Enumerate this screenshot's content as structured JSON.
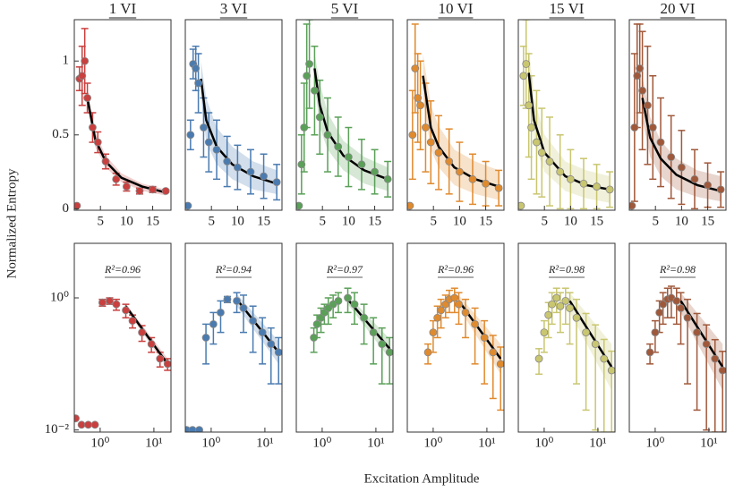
{
  "figure": {
    "ylabel": "Normalized Entropy",
    "xlabel": "Excitation Amplitude"
  },
  "chart_data": [
    {
      "type": "scatter",
      "title": "1 VI",
      "xscale": "linear",
      "yscale": "linear",
      "xlim": [
        0,
        18.5
      ],
      "ylim": [
        -0.01,
        1.28
      ],
      "xticks": [
        5,
        10,
        15
      ],
      "yticks": [
        0,
        0.5,
        1
      ],
      "series": [
        {
          "color": "#c9403f",
          "x": [
            0.5,
            1,
            1.5,
            2,
            2.5,
            3.5,
            4.5,
            6,
            8,
            10,
            12.5,
            15,
            17.5
          ],
          "values": [
            0.02,
            0.88,
            0.9,
            1.0,
            0.75,
            0.55,
            0.45,
            0.32,
            0.2,
            0.15,
            0.12,
            0.13,
            0.12
          ],
          "errors": [
            0,
            0.08,
            0.2,
            0.22,
            0.1,
            0.1,
            0.07,
            0.05,
            0.04,
            0.03,
            0.02,
            0.02,
            0.01
          ]
        }
      ],
      "fit": {
        "x": [
          2.5,
          4,
          6,
          9,
          13,
          17.5
        ],
        "values": [
          0.75,
          0.47,
          0.32,
          0.21,
          0.15,
          0.11
        ],
        "lower": [
          0.7,
          0.42,
          0.28,
          0.18,
          0.12,
          0.09
        ],
        "upper": [
          0.8,
          0.52,
          0.36,
          0.24,
          0.17,
          0.13
        ]
      }
    },
    {
      "type": "scatter",
      "title": "3 VI",
      "xscale": "linear",
      "yscale": "linear",
      "xlim": [
        0,
        18.5
      ],
      "ylim": [
        -0.01,
        1.28
      ],
      "xticks": [
        5,
        10,
        15
      ],
      "series": [
        {
          "color": "#4a7bb0",
          "x": [
            0.5,
            1,
            1.5,
            2,
            2.5,
            3.5,
            4.5,
            6,
            8,
            10,
            12.5,
            15,
            17.5
          ],
          "values": [
            0.02,
            0.5,
            0.98,
            0.95,
            0.85,
            0.55,
            0.45,
            0.4,
            0.32,
            0.28,
            0.25,
            0.22,
            0.18
          ],
          "errors": [
            0,
            0.1,
            0.1,
            0.15,
            0.2,
            0.2,
            0.2,
            0.2,
            0.17,
            0.15,
            0.15,
            0.15,
            0.12
          ]
        }
      ],
      "fit": {
        "x": [
          3,
          4,
          6,
          9,
          13,
          17.5
        ],
        "values": [
          0.88,
          0.6,
          0.42,
          0.3,
          0.22,
          0.17
        ],
        "lower": [
          0.75,
          0.45,
          0.3,
          0.2,
          0.13,
          0.1
        ],
        "upper": [
          1.0,
          0.75,
          0.55,
          0.42,
          0.32,
          0.26
        ]
      }
    },
    {
      "type": "scatter",
      "title": "5 VI",
      "xscale": "linear",
      "yscale": "linear",
      "xlim": [
        0,
        18.5
      ],
      "ylim": [
        -0.01,
        1.28
      ],
      "xticks": [
        5,
        10,
        15
      ],
      "series": [
        {
          "color": "#5aa058",
          "x": [
            0.5,
            1,
            1.5,
            2,
            2.5,
            3.5,
            4.5,
            6,
            8,
            10,
            12.5,
            15,
            17.5
          ],
          "values": [
            0.02,
            0.3,
            0.55,
            0.9,
            0.98,
            0.8,
            0.62,
            0.5,
            0.42,
            0.35,
            0.3,
            0.25,
            0.2
          ],
          "errors": [
            0,
            0.2,
            0.3,
            0.35,
            0.3,
            0.3,
            0.25,
            0.25,
            0.2,
            0.2,
            0.17,
            0.15,
            0.12
          ]
        }
      ],
      "fit": {
        "x": [
          3.5,
          4.5,
          6,
          9,
          13,
          17.5
        ],
        "values": [
          0.95,
          0.7,
          0.52,
          0.36,
          0.26,
          0.2
        ],
        "lower": [
          0.85,
          0.55,
          0.4,
          0.26,
          0.17,
          0.12
        ],
        "upper": [
          1.05,
          0.85,
          0.65,
          0.46,
          0.35,
          0.28
        ]
      }
    },
    {
      "type": "scatter",
      "title": "10 VI",
      "xscale": "linear",
      "yscale": "linear",
      "xlim": [
        0,
        18.5
      ],
      "ylim": [
        -0.01,
        1.28
      ],
      "xticks": [
        5,
        10,
        15
      ],
      "series": [
        {
          "color": "#e08a2e",
          "x": [
            0.5,
            1,
            1.5,
            2,
            2.5,
            3.5,
            4.5,
            6,
            8,
            10,
            12.5,
            15,
            17.5
          ],
          "values": [
            0.02,
            0.5,
            0.95,
            0.75,
            0.7,
            0.55,
            0.45,
            0.38,
            0.32,
            0.25,
            0.2,
            0.17,
            0.14
          ],
          "errors": [
            0,
            0.3,
            0.3,
            0.3,
            0.3,
            0.3,
            0.28,
            0.25,
            0.22,
            0.2,
            0.17,
            0.15,
            0.12
          ]
        }
      ],
      "fit": {
        "x": [
          3,
          4.5,
          6,
          9,
          13,
          17.5
        ],
        "values": [
          0.9,
          0.55,
          0.42,
          0.28,
          0.2,
          0.15
        ],
        "lower": [
          0.75,
          0.4,
          0.28,
          0.16,
          0.1,
          0.06
        ],
        "upper": [
          1.05,
          0.7,
          0.56,
          0.4,
          0.32,
          0.26
        ]
      }
    },
    {
      "type": "scatter",
      "title": "15 VI",
      "xscale": "linear",
      "yscale": "linear",
      "xlim": [
        0,
        18.5
      ],
      "ylim": [
        -0.01,
        1.28
      ],
      "xticks": [
        5,
        10,
        15
      ],
      "series": [
        {
          "color": "#c9c670",
          "x": [
            0.5,
            1,
            1.5,
            2,
            2.5,
            3.5,
            4.5,
            6,
            8,
            10,
            12.5,
            15,
            17.5
          ],
          "values": [
            0.02,
            0.9,
            0.98,
            0.7,
            0.55,
            0.45,
            0.38,
            0.32,
            0.25,
            0.2,
            0.17,
            0.15,
            0.13
          ],
          "errors": [
            0,
            0.2,
            0.3,
            0.35,
            0.35,
            0.35,
            0.3,
            0.3,
            0.25,
            0.2,
            0.17,
            0.15,
            0.12
          ]
        }
      ],
      "fit": {
        "x": [
          2,
          3,
          5,
          9,
          13,
          17.5
        ],
        "values": [
          0.92,
          0.6,
          0.38,
          0.22,
          0.16,
          0.13
        ],
        "lower": [
          0.75,
          0.45,
          0.25,
          0.12,
          0.07,
          0.04
        ],
        "upper": [
          1.1,
          0.75,
          0.5,
          0.32,
          0.26,
          0.22
        ]
      }
    },
    {
      "type": "scatter",
      "title": "20 VI",
      "xscale": "linear",
      "yscale": "linear",
      "xlim": [
        0,
        18.5
      ],
      "ylim": [
        -0.01,
        1.28
      ],
      "xticks": [
        5,
        10,
        15
      ],
      "series": [
        {
          "color": "#a0583a",
          "x": [
            0.5,
            1,
            1.5,
            2,
            2.5,
            3.5,
            4.5,
            6,
            8,
            10,
            12.5,
            15,
            17.5
          ],
          "values": [
            0.02,
            0.55,
            0.9,
            0.95,
            0.8,
            0.7,
            0.55,
            0.45,
            0.35,
            0.28,
            0.2,
            0.16,
            0.13
          ],
          "errors": [
            0,
            0.5,
            0.35,
            0.3,
            0.4,
            0.4,
            0.35,
            0.3,
            0.28,
            0.25,
            0.2,
            0.15,
            0.12
          ]
        }
      ],
      "fit": {
        "x": [
          2.5,
          4,
          6,
          9,
          13,
          17.5
        ],
        "values": [
          0.75,
          0.48,
          0.34,
          0.23,
          0.16,
          0.12
        ],
        "lower": [
          0.6,
          0.35,
          0.22,
          0.13,
          0.08,
          0.05
        ],
        "upper": [
          0.9,
          0.62,
          0.46,
          0.34,
          0.26,
          0.22
        ]
      }
    },
    {
      "type": "scatter",
      "annotation": "R²=0.96",
      "xscale": "log",
      "yscale": "log",
      "xlim": [
        0.33,
        20.8
      ],
      "ylim": [
        0.0093,
        6.7
      ],
      "xticks": [
        {
          "value": 1,
          "label": "10⁰"
        },
        {
          "value": 10,
          "label": "10¹"
        }
      ],
      "yticks": [
        {
          "value": 0.01,
          "label": "10⁻²"
        },
        {
          "value": 1,
          "label": "10⁰"
        }
      ],
      "series": [
        {
          "color": "#c9403f",
          "x": [
            0.35,
            0.45,
            0.6,
            0.8,
            1.1,
            1.5,
            2,
            3,
            4,
            6,
            9,
            13,
            18
          ],
          "values": [
            0.015,
            0.012,
            0.012,
            0.012,
            0.85,
            0.9,
            0.8,
            0.65,
            0.45,
            0.3,
            0.2,
            0.12,
            0.1
          ],
          "errors": [
            0,
            0,
            0,
            0,
            0.1,
            0.1,
            0.15,
            0.15,
            0.1,
            0.08,
            0.05,
            0.03,
            0.02
          ]
        }
      ],
      "fit": {
        "x": [
          3,
          18
        ],
        "values": [
          0.75,
          0.1
        ],
        "lower": [
          0.68,
          0.085
        ],
        "upper": [
          0.82,
          0.12
        ]
      }
    },
    {
      "type": "scatter",
      "annotation": "R²=0.94",
      "xscale": "log",
      "yscale": "log",
      "xlim": [
        0.33,
        20.8
      ],
      "ylim": [
        0.0093,
        6.7
      ],
      "xticks": [
        {
          "value": 1,
          "label": "10⁰"
        },
        {
          "value": 10,
          "label": "10¹"
        }
      ],
      "series": [
        {
          "color": "#4a7bb0",
          "x": [
            0.35,
            0.45,
            0.6,
            0.8,
            1.1,
            1.5,
            2,
            3,
            4,
            6,
            9,
            13,
            18
          ],
          "values": [
            0.01,
            0.01,
            0.01,
            0.25,
            0.4,
            0.6,
            0.95,
            0.9,
            0.7,
            0.45,
            0.3,
            0.2,
            0.15
          ],
          "errors": [
            0,
            0,
            0,
            0.15,
            0.2,
            0.3,
            0.1,
            0.3,
            0.4,
            0.3,
            0.2,
            0.15,
            0.1
          ]
        }
      ],
      "fit": {
        "x": [
          3,
          18
        ],
        "values": [
          0.95,
          0.15
        ],
        "lower": [
          0.75,
          0.1
        ],
        "upper": [
          1.15,
          0.22
        ]
      }
    },
    {
      "type": "scatter",
      "annotation": "R²=0.97",
      "xscale": "log",
      "yscale": "log",
      "xlim": [
        0.33,
        20.8
      ],
      "ylim": [
        0.0093,
        6.7
      ],
      "xticks": [
        {
          "value": 1,
          "label": "10⁰"
        },
        {
          "value": 10,
          "label": "10¹"
        }
      ],
      "series": [
        {
          "color": "#5aa058",
          "x": [
            0.7,
            0.8,
            0.95,
            1.1,
            1.3,
            1.6,
            2,
            3,
            4,
            6,
            9,
            13,
            18
          ],
          "values": [
            0.25,
            0.4,
            0.5,
            0.6,
            0.7,
            0.8,
            0.9,
            1.0,
            0.8,
            0.5,
            0.3,
            0.2,
            0.15
          ],
          "errors": [
            0.1,
            0.15,
            0.2,
            0.2,
            0.3,
            0.3,
            0.3,
            0.4,
            0.4,
            0.3,
            0.2,
            0.15,
            0.1
          ]
        }
      ],
      "fit": {
        "x": [
          3,
          18
        ],
        "values": [
          0.95,
          0.17
        ],
        "lower": [
          0.8,
          0.12
        ],
        "upper": [
          1.1,
          0.24
        ]
      }
    },
    {
      "type": "scatter",
      "annotation": "R²=0.96",
      "xscale": "log",
      "yscale": "log",
      "xlim": [
        0.33,
        20.8
      ],
      "ylim": [
        0.0093,
        6.7
      ],
      "xticks": [
        {
          "value": 1,
          "label": "10⁰"
        },
        {
          "value": 10,
          "label": "10¹"
        }
      ],
      "series": [
        {
          "color": "#e08a2e",
          "x": [
            0.8,
            1,
            1.2,
            1.4,
            1.7,
            2,
            2.5,
            3,
            4,
            6,
            9,
            13,
            18
          ],
          "values": [
            0.15,
            0.3,
            0.5,
            0.65,
            0.8,
            0.95,
            1.0,
            0.8,
            0.6,
            0.4,
            0.25,
            0.15,
            0.1
          ],
          "errors": [
            0.05,
            0.15,
            0.25,
            0.3,
            0.3,
            0.35,
            0.4,
            0.4,
            0.35,
            0.3,
            0.2,
            0.12,
            0.08
          ]
        }
      ],
      "fit": {
        "x": [
          3,
          18
        ],
        "values": [
          0.9,
          0.12
        ],
        "lower": [
          0.7,
          0.07
        ],
        "upper": [
          1.1,
          0.2
        ]
      }
    },
    {
      "type": "scatter",
      "annotation": "R²=0.98",
      "xscale": "log",
      "yscale": "log",
      "xlim": [
        0.33,
        20.8
      ],
      "ylim": [
        0.0093,
        6.7
      ],
      "xticks": [
        {
          "value": 1,
          "label": "10⁰"
        },
        {
          "value": 10,
          "label": "10¹"
        }
      ],
      "series": [
        {
          "color": "#c9c670",
          "x": [
            0.8,
            1,
            1.2,
            1.4,
            1.7,
            2,
            2.5,
            3,
            4,
            6,
            9,
            13,
            18
          ],
          "values": [
            0.12,
            0.3,
            0.55,
            0.8,
            1.0,
            0.75,
            0.9,
            0.7,
            0.5,
            0.3,
            0.2,
            0.12,
            0.08
          ],
          "errors": [
            0.05,
            0.15,
            0.3,
            0.4,
            0.4,
            0.45,
            0.5,
            0.5,
            0.45,
            0.28,
            0.19,
            0.115,
            0.076
          ]
        }
      ],
      "fit": {
        "x": [
          3,
          18
        ],
        "values": [
          0.9,
          0.09
        ],
        "lower": [
          0.6,
          0.04
        ],
        "upper": [
          1.2,
          0.2
        ]
      }
    },
    {
      "type": "scatter",
      "annotation": "R²=0.98",
      "xscale": "log",
      "yscale": "log",
      "xlim": [
        0.33,
        20.8
      ],
      "ylim": [
        0.0093,
        6.7
      ],
      "xticks": [
        {
          "value": 1,
          "label": "10⁰"
        },
        {
          "value": 10,
          "label": "10¹"
        }
      ],
      "series": [
        {
          "color": "#a0583a",
          "x": [
            0.8,
            1,
            1.2,
            1.4,
            1.7,
            2,
            2.5,
            3,
            4,
            6,
            9,
            13,
            18
          ],
          "values": [
            0.15,
            0.3,
            0.6,
            0.8,
            0.95,
            1.0,
            0.9,
            0.7,
            0.5,
            0.3,
            0.2,
            0.12,
            0.08
          ],
          "errors": [
            0.05,
            0.15,
            0.3,
            0.4,
            0.45,
            0.5,
            0.5,
            0.5,
            0.45,
            0.28,
            0.19,
            0.113,
            0.075
          ]
        }
      ],
      "fit": {
        "x": [
          3,
          18
        ],
        "values": [
          0.9,
          0.09
        ],
        "lower": [
          0.6,
          0.04
        ],
        "upper": [
          1.2,
          0.2
        ]
      }
    }
  ]
}
